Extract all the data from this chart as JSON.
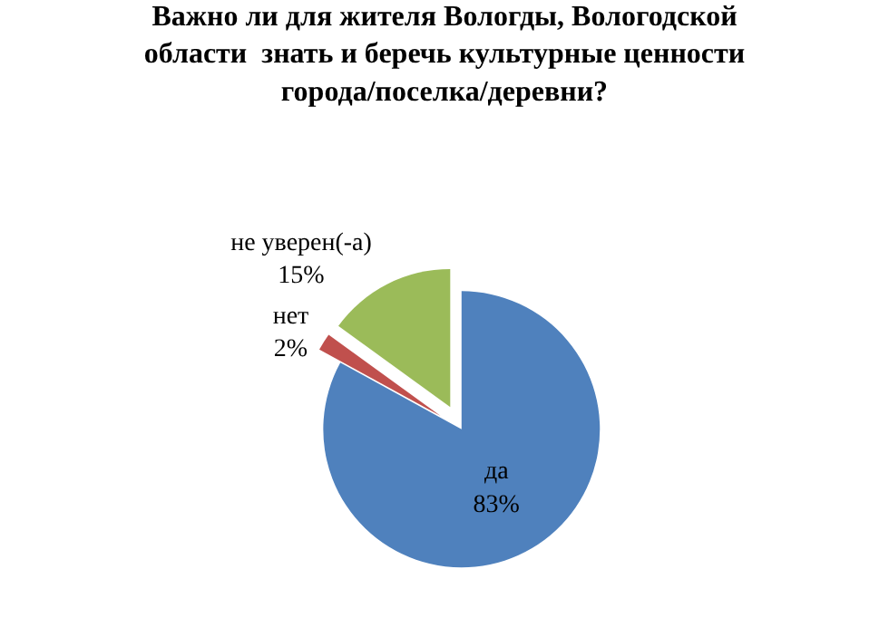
{
  "chart_data": {
    "type": "pie",
    "title": "Важно ли для жителя Вологды, Вологодской области  знать и беречь культурные ценности города/поселка/деревни?",
    "categories": [
      "да",
      "нет",
      "не уверен(-а)"
    ],
    "values": [
      83,
      2,
      15
    ],
    "value_labels": [
      "83%",
      "2%",
      "15%"
    ],
    "colors": [
      "#4f81bd",
      "#c0504d",
      "#9bbb59"
    ],
    "legend": false
  }
}
